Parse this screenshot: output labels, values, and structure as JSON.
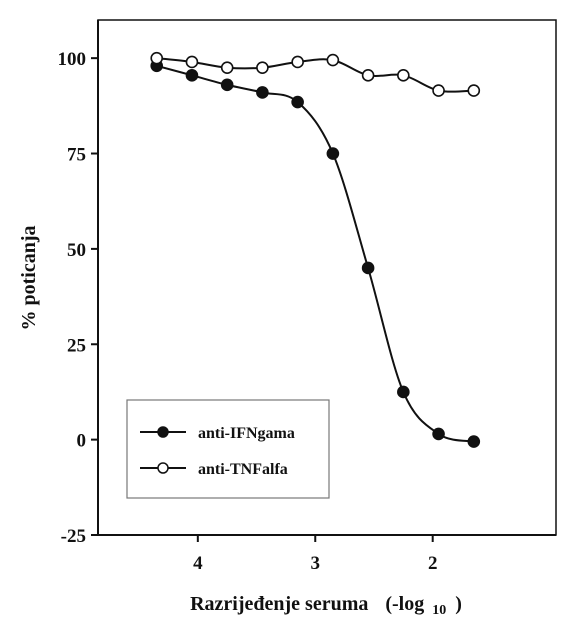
{
  "chart_data": {
    "type": "line",
    "xlabel": "Razrijeđenje seruma",
    "xlabel_suffix": "(-log",
    "xlabel_sub": "10",
    "xlabel_close": ")",
    "ylabel": "% poticanja",
    "xlim": [
      4.85,
      0.95
    ],
    "ylim": [
      -25,
      110
    ],
    "xticks": [
      4,
      3,
      2
    ],
    "yticks": [
      -25,
      0,
      25,
      50,
      75,
      100
    ],
    "xtick_labels": [
      "4",
      "3",
      "2"
    ],
    "ytick_labels": [
      "-25",
      "0",
      "25",
      "50",
      "75",
      "100"
    ],
    "grid": false,
    "legend_position": "bottom-left",
    "series": [
      {
        "name": "anti-IFNgama",
        "marker": "filled-circle",
        "color": "#111111",
        "x": [
          4.35,
          4.05,
          3.75,
          3.45,
          3.15,
          2.85,
          2.55,
          2.25,
          1.95,
          1.65
        ],
        "y": [
          98,
          95.5,
          93,
          91,
          88.5,
          75,
          45,
          12.5,
          1.5,
          -0.5
        ]
      },
      {
        "name": "anti-TNFalfa",
        "marker": "open-circle",
        "color": "#111111",
        "x": [
          4.35,
          4.05,
          3.75,
          3.45,
          3.15,
          2.85,
          2.55,
          2.25,
          1.95,
          1.65
        ],
        "y": [
          100,
          99,
          97.5,
          97.5,
          99,
          99.5,
          95.5,
          95.5,
          91.5,
          91.5
        ]
      }
    ]
  }
}
